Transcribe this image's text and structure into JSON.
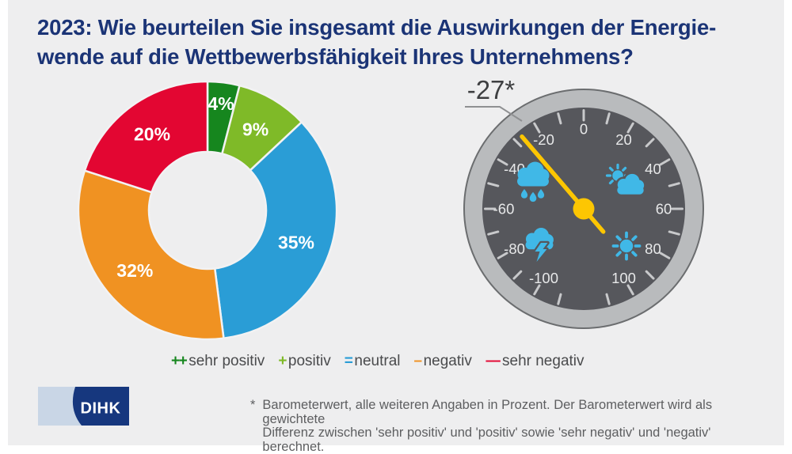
{
  "title": "2023: Wie beurteilen Sie insgesamt die Auswirkungen der Energie-\nwende auf die Wettbewerbsfähigkeit Ihres Unternehmens?",
  "chart_data": [
    {
      "type": "pie",
      "subtype": "donut",
      "start_angle_deg": 0,
      "direction": "clockwise",
      "label_color": "#ffffff",
      "gap_color": "#f2f2f3",
      "segments": [
        {
          "label": "sehr positiv",
          "symbol": "++",
          "value": 4,
          "display": "4%",
          "color": "#16861e"
        },
        {
          "label": "positiv",
          "symbol": "+",
          "value": 9,
          "display": "9%",
          "color": "#7fba28"
        },
        {
          "label": "neutral",
          "symbol": "=",
          "value": 35,
          "display": "35%",
          "color": "#2a9dd6"
        },
        {
          "label": "negativ",
          "symbol": "–",
          "value": 32,
          "display": "32%",
          "color": "#f09222"
        },
        {
          "label": "sehr negativ",
          "symbol": "––",
          "value": 20,
          "display": "20%",
          "color": "#e30632"
        }
      ]
    },
    {
      "type": "gauge",
      "value": -27,
      "value_label": "-27*",
      "min": -100,
      "max": 100,
      "tick_step": 10,
      "label_step": 20,
      "axis_labels": [
        "-100",
        "-80",
        "-60",
        "-40",
        "-20",
        "0",
        "20",
        "40",
        "60",
        "80",
        "100"
      ],
      "needle_color": "#fdc602",
      "hub_color": "#fdc602",
      "face_color": "#56575c",
      "ring_color": "#b9bbbd",
      "ring_border_color": "#6b6d6f",
      "tick_color": "#c8c9cb",
      "axis_label_color": "#e7e8e9",
      "icon_color": "#40b8e7",
      "value_label_color": "#3e3f41",
      "icons": [
        "rain-cloud",
        "sun-behind-cloud",
        "thunder-cloud",
        "sun"
      ]
    }
  ],
  "legend": {
    "items": [
      {
        "symbol": "++",
        "label": "sehr positiv",
        "color": "#16861e"
      },
      {
        "symbol": "+",
        "label": "positiv",
        "color": "#7fba28"
      },
      {
        "symbol": "=",
        "label": "neutral",
        "color": "#2a9dd6"
      },
      {
        "symbol": "–",
        "label": "negativ",
        "color": "#f09222"
      },
      {
        "symbol": "––",
        "label": "sehr negativ",
        "color": "#e30632"
      }
    ]
  },
  "logo": {
    "text": "DIHK",
    "dark_color": "#16377e",
    "light_color": "#c9d6e6"
  },
  "footnote": {
    "marker": "*",
    "text": "Barometerwert, alle weiteren Angaben in Prozent. Der Barometerwert wird als gewichtete\nDifferenz zwischen 'sehr positiv' und 'positiv' sowie 'sehr negativ' und 'negativ' berechnet."
  }
}
